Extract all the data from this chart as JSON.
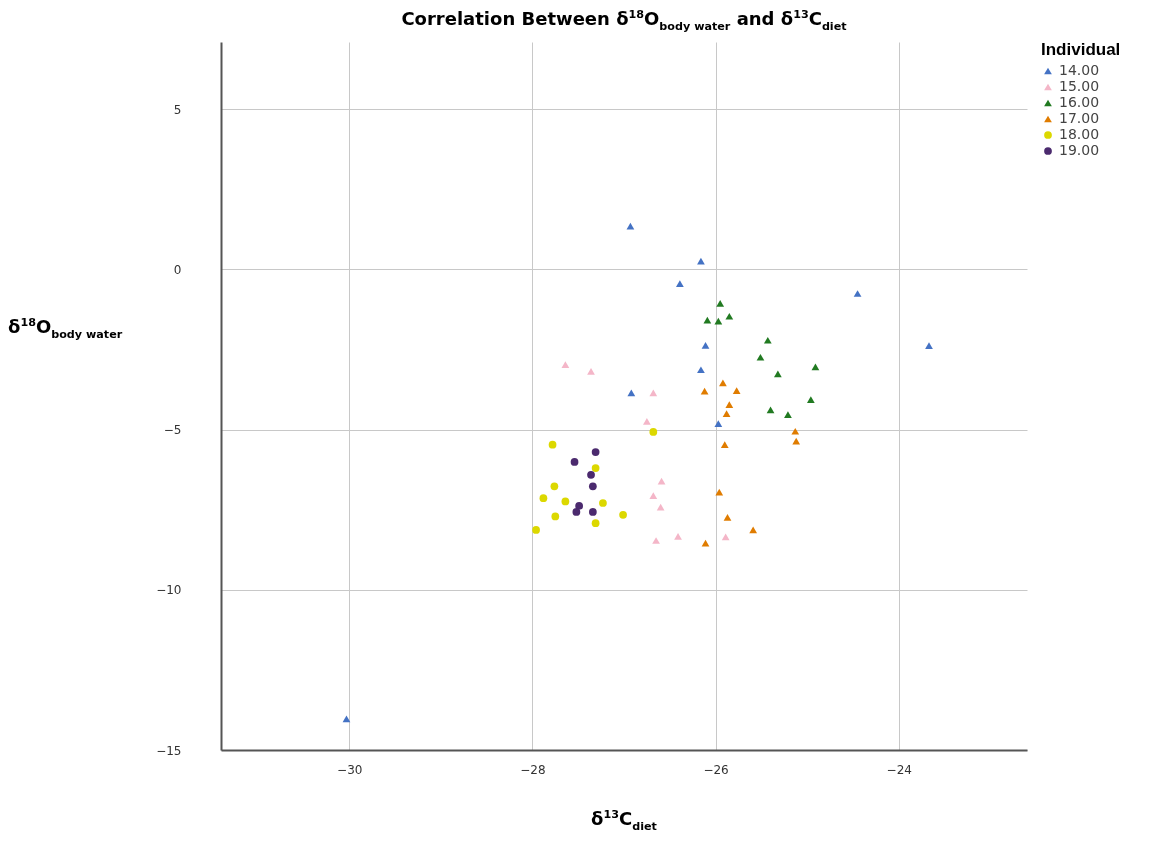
{
  "chart_data": {
    "type": "scatter",
    "title": "Correlation Between δ$^{18}$O$_{body water}$ and δ$^{13}$C$_{diet}$",
    "xlabel": "δ$^{13}$C$_{diet}$",
    "ylabel": "δ$^{18}$O$_{body water}$",
    "legend_title": "Individual",
    "xlim": [
      -31.4,
      -22.6
    ],
    "ylim": [
      -15,
      7.1
    ],
    "xticks": [
      -30,
      -28,
      -26,
      -24
    ],
    "yticks": [
      -15,
      -10,
      -5,
      0,
      5
    ],
    "grid": true,
    "legend": "top right",
    "series": [
      {
        "name": "14.00",
        "color": "#4472c4",
        "marker": "triangle",
        "x": [
          -26.93,
          -26.16,
          -26.39,
          -24.45,
          -23.67,
          -26.11,
          -26.16,
          -26.92,
          -25.97,
          -30.03
        ],
        "values": [
          1.35,
          0.26,
          -0.44,
          -0.75,
          -2.38,
          -2.37,
          -3.13,
          -3.85,
          -4.81,
          -14.03
        ]
      },
      {
        "name": "15.00",
        "color": "#f4b6c8",
        "marker": "triangle",
        "x": [
          -27.64,
          -27.36,
          -26.68,
          -26.75,
          -26.59,
          -26.68,
          -26.6,
          -26.65,
          -26.41,
          -25.89
        ],
        "values": [
          -2.97,
          -3.18,
          -3.85,
          -4.74,
          -6.61,
          -7.06,
          -7.42,
          -8.46,
          -8.33,
          -8.35
        ]
      },
      {
        "name": "16.00",
        "color": "#217a21",
        "marker": "triangle",
        "x": [
          -25.95,
          -25.85,
          -26.09,
          -25.97,
          -25.43,
          -25.51,
          -25.32,
          -24.91,
          -24.96,
          -25.4,
          -25.21
        ],
        "values": [
          -1.06,
          -1.46,
          -1.58,
          -1.61,
          -2.21,
          -2.74,
          -3.26,
          -3.04,
          -4.06,
          -4.38,
          -4.53
        ]
      },
      {
        "name": "17.00",
        "color": "#e07c00",
        "marker": "triangle",
        "x": [
          -26.12,
          -25.92,
          -25.77,
          -25.85,
          -25.88,
          -25.13,
          -25.12,
          -25.9,
          -25.96,
          -25.87,
          -25.59,
          -26.11
        ],
        "values": [
          -3.8,
          -3.54,
          -3.78,
          -4.22,
          -4.5,
          -5.05,
          -5.36,
          -5.47,
          -6.95,
          -7.74,
          -8.13,
          -8.54
        ]
      },
      {
        "name": "18.00",
        "color": "#dcd800",
        "marker": "circle",
        "x": [
          -27.78,
          -26.68,
          -27.31,
          -27.76,
          -27.88,
          -27.64,
          -27.23,
          -27.75,
          -27.01,
          -27.31,
          -27.96
        ],
        "values": [
          -5.47,
          -5.07,
          -6.2,
          -6.77,
          -7.14,
          -7.24,
          -7.29,
          -7.71,
          -7.66,
          -7.92,
          -8.13
        ]
      },
      {
        "name": "19.00",
        "color": "#4b2a6e",
        "marker": "circle",
        "x": [
          -27.31,
          -27.54,
          -27.36,
          -27.34,
          -27.49,
          -27.52,
          -27.34
        ],
        "values": [
          -5.7,
          -6.01,
          -6.41,
          -6.77,
          -7.38,
          -7.57,
          -7.57
        ]
      }
    ]
  }
}
